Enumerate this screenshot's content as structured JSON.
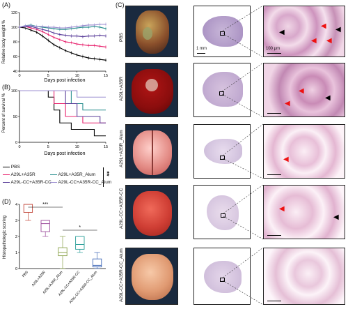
{
  "panels": {
    "A": "(A)",
    "B": "(B)",
    "C": "(C)",
    "D": "(D)"
  },
  "panel_a": {
    "ylabel": "Relative body weight %",
    "xlabel": "Days post infection"
  },
  "panel_b": {
    "ylabel": "Percent of survival %",
    "xlabel": "Days post infection"
  },
  "legend": {
    "items": [
      {
        "label": "PBS",
        "color": "#000000"
      },
      {
        "label": "A29L+A35R",
        "color": "#e8246f"
      },
      {
        "label": "A29L+A35R_Alum",
        "color": "#2a8f8f"
      },
      {
        "label": "A29L-CC+A35R-CC",
        "color": "#5b3f9a"
      },
      {
        "label": "A29L-CC+A35R-CC_Alum",
        "color": "#9c8fd0"
      }
    ],
    "significance": "**"
  },
  "panel_d": {
    "ylabel": "Histopathologic scoring",
    "sig1": "***",
    "sig2": "*"
  },
  "panel_c": {
    "rows": [
      "PBS",
      "A29L+A35R",
      "A29L+A35R_Alum",
      "A29L-CC+A35R-CC",
      "A29L-CC+A35R-CC_Alum"
    ],
    "scale_1": "1 mm",
    "scale_2": "100 μm"
  },
  "chart_data": [
    {
      "type": "line",
      "panel": "A",
      "ylabel": "Relative body weight %",
      "xlabel": "Days post infection",
      "x": [
        0,
        1,
        2,
        3,
        4,
        5,
        6,
        7,
        8,
        9,
        10,
        11,
        12,
        13,
        14,
        15
      ],
      "xticks": [
        0,
        5,
        10,
        15
      ],
      "yticks": [
        40,
        60,
        80,
        100,
        120
      ],
      "ylim": [
        40,
        120
      ],
      "xlim": [
        0,
        15
      ],
      "series": [
        {
          "name": "PBS",
          "color": "#000000",
          "values": [
            100,
            99,
            96,
            93,
            88,
            82,
            76,
            72,
            68,
            65,
            62,
            60,
            58,
            57,
            56,
            55
          ]
        },
        {
          "name": "A29L+A35R",
          "color": "#e8246f",
          "values": [
            100,
            101,
            99,
            97,
            94,
            90,
            86,
            83,
            80,
            79,
            77,
            76,
            75,
            75,
            74,
            73
          ]
        },
        {
          "name": "A29L+A35R_Alum",
          "color": "#2a8f8f",
          "values": [
            100,
            102,
            103,
            101,
            100,
            99,
            98,
            97,
            97,
            98,
            99,
            100,
            100,
            101,
            100,
            98
          ]
        },
        {
          "name": "A29L-CC+A35R-CC",
          "color": "#5b3f9a",
          "values": [
            100,
            101,
            101,
            99,
            97,
            95,
            92,
            90,
            89,
            88,
            88,
            87,
            88,
            88,
            89,
            88
          ]
        },
        {
          "name": "A29L-CC+A35R-CC_Alum",
          "color": "#9c8fd0",
          "values": [
            100,
            102,
            102,
            101,
            101,
            100,
            100,
            99,
            99,
            100,
            101,
            102,
            103,
            103,
            104,
            104
          ]
        }
      ]
    },
    {
      "type": "line",
      "panel": "B",
      "ylabel": "Percent of survival %",
      "xlabel": "Days post infection",
      "xticks": [
        0,
        5,
        10,
        15
      ],
      "yticks": [
        0,
        50,
        100
      ],
      "ylim": [
        0,
        100
      ],
      "xlim": [
        0,
        15
      ],
      "series": [
        {
          "name": "PBS",
          "color": "#000000",
          "steps": [
            [
              0,
              100
            ],
            [
              5,
              100
            ],
            [
              5,
              87.5
            ],
            [
              6,
              87.5
            ],
            [
              6,
              62.5
            ],
            [
              7,
              62.5
            ],
            [
              7,
              37.5
            ],
            [
              9,
              37.5
            ],
            [
              9,
              25
            ],
            [
              13,
              25
            ],
            [
              13,
              12.5
            ],
            [
              15,
              12.5
            ]
          ]
        },
        {
          "name": "A29L+A35R",
          "color": "#e8246f",
          "steps": [
            [
              0,
              100
            ],
            [
              6,
              100
            ],
            [
              6,
              75
            ],
            [
              8,
              75
            ],
            [
              8,
              50
            ],
            [
              11,
              50
            ],
            [
              11,
              37.5
            ],
            [
              15,
              37.5
            ]
          ]
        },
        {
          "name": "A29L+A35R_Alum",
          "color": "#2a8f8f",
          "steps": [
            [
              0,
              100
            ],
            [
              9,
              100
            ],
            [
              9,
              75
            ],
            [
              11,
              75
            ],
            [
              11,
              62.5
            ],
            [
              15,
              62.5
            ]
          ]
        },
        {
          "name": "A29L-CC+A35R-CC",
          "color": "#5b3f9a",
          "steps": [
            [
              0,
              100
            ],
            [
              8,
              100
            ],
            [
              8,
              75
            ],
            [
              10,
              75
            ],
            [
              10,
              50
            ],
            [
              14,
              50
            ],
            [
              14,
              37.5
            ],
            [
              15,
              37.5
            ]
          ]
        },
        {
          "name": "A29L-CC+A35R-CC_Alum",
          "color": "#9c8fd0",
          "steps": [
            [
              0,
              100
            ],
            [
              10,
              100
            ],
            [
              10,
              87.5
            ],
            [
              15,
              87.5
            ]
          ]
        }
      ]
    },
    {
      "type": "box",
      "panel": "D",
      "ylabel": "Histopathologic scoring",
      "ylim": [
        0,
        4
      ],
      "yticks": [
        0,
        1,
        2,
        3,
        4
      ],
      "categories": [
        "PBS",
        "A29L+A35R",
        "A29L+A35R_Alum",
        "A29L-CC+A35R-CC",
        "A29L-CC+A35R-CC_Alum"
      ],
      "boxes": [
        {
          "color": "#c2473a",
          "min": 3.0,
          "q1": 3.5,
          "median": 4.0,
          "q3": 4.0,
          "max": 4.0
        },
        {
          "color": "#9b4a9b",
          "min": 2.0,
          "q1": 2.3,
          "median": 2.8,
          "q3": 3.0,
          "max": 3.0
        },
        {
          "color": "#8aa24a",
          "min": 0.0,
          "q1": 0.8,
          "median": 1.0,
          "q3": 1.3,
          "max": 2.0
        },
        {
          "color": "#2d9f9a",
          "min": 1.0,
          "q1": 1.2,
          "median": 1.5,
          "q3": 2.0,
          "max": 2.0
        },
        {
          "color": "#3a64b5",
          "min": 0.0,
          "q1": 0.1,
          "median": 0.2,
          "q3": 0.6,
          "max": 1.0
        }
      ]
    }
  ]
}
